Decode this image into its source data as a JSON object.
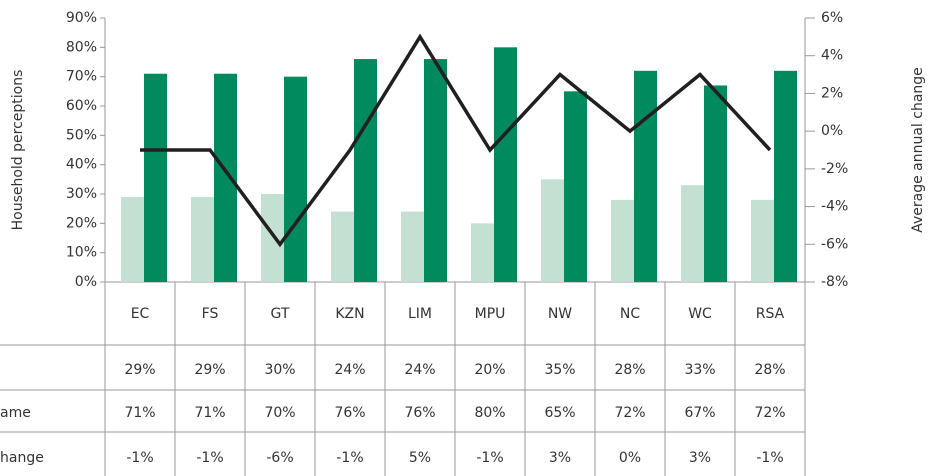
{
  "chart_data": {
    "type": "bar",
    "categories": [
      "EC",
      "FS",
      "GT",
      "KZN",
      "LIM",
      "MPU",
      "NW",
      "NC",
      "WC",
      "RSA"
    ],
    "ylabel": "Household perceptions",
    "y2label": "Average annual change",
    "ylim": [
      0,
      90
    ],
    "yticks": [
      {
        "value": 0,
        "label": "0%"
      },
      {
        "value": 10,
        "label": "10%"
      },
      {
        "value": 20,
        "label": "20%"
      },
      {
        "value": 30,
        "label": "30%"
      },
      {
        "value": 40,
        "label": "40%"
      },
      {
        "value": 50,
        "label": "50%"
      },
      {
        "value": 60,
        "label": "60%"
      },
      {
        "value": 70,
        "label": "70%"
      },
      {
        "value": 80,
        "label": "80%"
      },
      {
        "value": 90,
        "label": "90%"
      }
    ],
    "y2lim": [
      -8,
      6
    ],
    "y2ticks": [
      {
        "value": -8,
        "label": "-8%"
      },
      {
        "value": -6,
        "label": "-6%"
      },
      {
        "value": -4,
        "label": "-4%"
      },
      {
        "value": -2,
        "label": "-2%"
      },
      {
        "value": 0,
        "label": "0%"
      },
      {
        "value": 2,
        "label": "2%"
      },
      {
        "value": 4,
        "label": "4%"
      },
      {
        "value": 6,
        "label": "6%"
      }
    ],
    "series": [
      {
        "color": "#c4e0d2",
        "values": [
          29,
          29,
          30,
          24,
          24,
          20,
          35,
          28,
          33,
          28
        ],
        "value_labels": [
          "29%",
          "29%",
          "30%",
          "24%",
          "24%",
          "20%",
          "35%",
          "28%",
          "33%",
          "28%"
        ]
      },
      {
        "name": "ame",
        "color": "#008a5e",
        "values": [
          71,
          71,
          70,
          76,
          76,
          80,
          65,
          72,
          67,
          72
        ],
        "value_labels": [
          "71%",
          "71%",
          "70%",
          "76%",
          "76%",
          "80%",
          "65%",
          "72%",
          "67%",
          "72%"
        ]
      },
      {
        "name": "hange",
        "type": "line",
        "axis": "y2",
        "color": "#231f20",
        "values": [
          -1,
          -1,
          -6,
          -1,
          5,
          -1,
          3,
          0,
          3,
          -1
        ],
        "value_labels": [
          "-1%",
          "-1%",
          "-6%",
          "-1%",
          "5%",
          "-1%",
          "3%",
          "0%",
          "3%",
          "-1%"
        ]
      }
    ]
  }
}
